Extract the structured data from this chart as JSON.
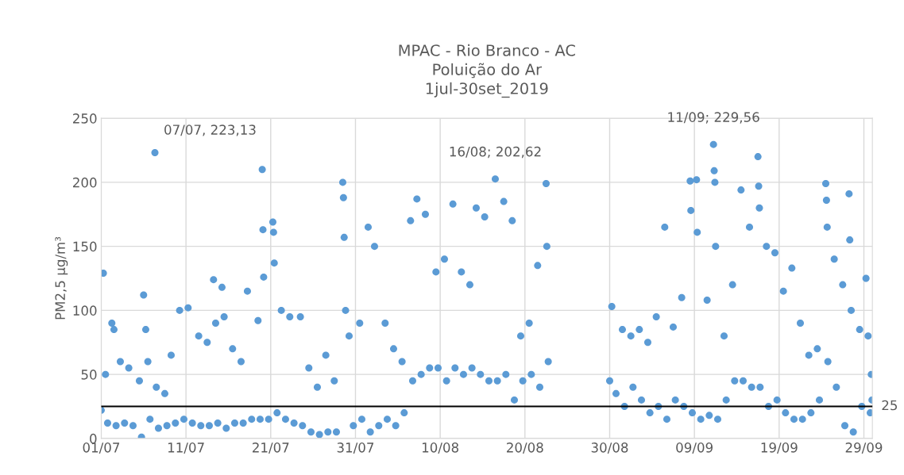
{
  "chart_data": {
    "type": "scatter",
    "title": "MPAC - Rio Branco - AC\nPoluição do Ar\n1jul-30set_2019",
    "ylabel": "PM2,5 µg/m³",
    "xlim": [
      "2019-07-01",
      "2019-09-30"
    ],
    "xticks": [
      {
        "value": "2019-07-01",
        "label": "01/07"
      },
      {
        "value": "2019-07-11",
        "label": "11/07"
      },
      {
        "value": "2019-07-21",
        "label": "21/07"
      },
      {
        "value": "2019-07-31",
        "label": "31/07"
      },
      {
        "value": "2019-08-10",
        "label": "10/08"
      },
      {
        "value": "2019-08-20",
        "label": "20/08"
      },
      {
        "value": "2019-08-30",
        "label": "30/08"
      },
      {
        "value": "2019-09-09",
        "label": "09/09"
      },
      {
        "value": "2019-09-19",
        "label": "19/09"
      },
      {
        "value": "2019-09-29",
        "label": "29/09"
      }
    ],
    "ylim": [
      0,
      250
    ],
    "yticks": [
      0,
      50,
      100,
      150,
      200,
      250
    ],
    "grid": true,
    "marker": "circle",
    "ref_lines": [
      {
        "axis": "y",
        "value": 25,
        "label": "25",
        "color": "#000000"
      }
    ],
    "annotations": [
      {
        "text": "07/07, 223,13",
        "x": "2019-07-07T08:00",
        "y": 223.13
      },
      {
        "text": "16/08; 202,62",
        "x": "2019-08-16T12:00",
        "y": 202.62
      },
      {
        "text": "11/09; 229,56",
        "x": "2019-09-11T06:00",
        "y": 229.56
      }
    ],
    "series": [
      {
        "color": "#5b9bd5",
        "x": [
          "2019-07-01T00:00",
          "2019-07-01T06:00",
          "2019-07-01T12:00",
          "2019-07-01T18:00",
          "2019-07-02T06:00",
          "2019-07-02T12:00",
          "2019-07-02T18:00",
          "2019-07-03T06:00",
          "2019-07-03T18:00",
          "2019-07-04T06:00",
          "2019-07-04T18:00",
          "2019-07-05T12:00",
          "2019-07-05T18:00",
          "2019-07-06T00:00",
          "2019-07-06T06:00",
          "2019-07-06T12:00",
          "2019-07-06T18:00",
          "2019-07-07T08:00",
          "2019-07-07T12:00",
          "2019-07-07T18:00",
          "2019-07-08T12:00",
          "2019-07-08T18:00",
          "2019-07-09T06:00",
          "2019-07-09T18:00",
          "2019-07-10T06:00",
          "2019-07-10T18:00",
          "2019-07-11T06:00",
          "2019-07-11T18:00",
          "2019-07-12T12:00",
          "2019-07-12T18:00",
          "2019-07-13T12:00",
          "2019-07-13T18:00",
          "2019-07-14T06:00",
          "2019-07-14T12:00",
          "2019-07-14T18:00",
          "2019-07-15T06:00",
          "2019-07-15T12:00",
          "2019-07-15T18:00",
          "2019-07-16T12:00",
          "2019-07-16T18:00",
          "2019-07-17T12:00",
          "2019-07-17T18:00",
          "2019-07-18T06:00",
          "2019-07-18T18:00",
          "2019-07-19T12:00",
          "2019-07-19T18:00",
          "2019-07-20T00:00",
          "2019-07-20T02:00",
          "2019-07-20T04:00",
          "2019-07-20T18:00",
          "2019-07-21T06:00",
          "2019-07-21T08:00",
          "2019-07-21T10:00",
          "2019-07-21T18:00",
          "2019-07-22T06:00",
          "2019-07-22T18:00",
          "2019-07-23T06:00",
          "2019-07-23T18:00",
          "2019-07-24T12:00",
          "2019-07-24T18:00",
          "2019-07-25T12:00",
          "2019-07-25T18:00",
          "2019-07-26T12:00",
          "2019-07-26T18:00",
          "2019-07-27T12:00",
          "2019-07-27T18:00",
          "2019-07-28T12:00",
          "2019-07-28T18:00",
          "2019-07-29T12:00",
          "2019-07-29T14:00",
          "2019-07-29T16:00",
          "2019-07-29T20:00",
          "2019-07-30T06:00",
          "2019-07-30T18:00",
          "2019-07-31T12:00",
          "2019-07-31T18:00",
          "2019-08-01T12:00",
          "2019-08-01T18:00",
          "2019-08-02T06:00",
          "2019-08-02T18:00",
          "2019-08-03T12:00",
          "2019-08-03T18:00",
          "2019-08-04T12:00",
          "2019-08-04T18:00",
          "2019-08-05T12:00",
          "2019-08-05T18:00",
          "2019-08-06T12:00",
          "2019-08-06T18:00",
          "2019-08-07T06:00",
          "2019-08-07T18:00",
          "2019-08-08T06:00",
          "2019-08-08T18:00",
          "2019-08-09T12:00",
          "2019-08-09T18:00",
          "2019-08-10T12:00",
          "2019-08-10T18:00",
          "2019-08-11T12:00",
          "2019-08-11T18:00",
          "2019-08-12T12:00",
          "2019-08-12T18:00",
          "2019-08-13T12:00",
          "2019-08-13T18:00",
          "2019-08-14T06:00",
          "2019-08-14T18:00",
          "2019-08-15T06:00",
          "2019-08-15T18:00",
          "2019-08-16T12:00",
          "2019-08-16T18:00",
          "2019-08-17T12:00",
          "2019-08-17T18:00",
          "2019-08-18T12:00",
          "2019-08-18T18:00",
          "2019-08-19T12:00",
          "2019-08-19T18:00",
          "2019-08-20T12:00",
          "2019-08-20T18:00",
          "2019-08-21T12:00",
          "2019-08-21T18:00",
          "2019-08-22T12:00",
          "2019-08-22T14:00",
          "2019-08-22T18:00",
          "2019-08-30T00:00",
          "2019-08-30T06:00",
          "2019-08-30T18:00",
          "2019-08-31T12:00",
          "2019-08-31T18:00",
          "2019-09-01T12:00",
          "2019-09-01T18:00",
          "2019-09-02T12:00",
          "2019-09-02T18:00",
          "2019-09-03T12:00",
          "2019-09-03T18:00",
          "2019-09-04T12:00",
          "2019-09-04T18:00",
          "2019-09-05T12:00",
          "2019-09-05T18:00",
          "2019-09-06T12:00",
          "2019-09-06T18:00",
          "2019-09-07T12:00",
          "2019-09-07T18:00",
          "2019-09-08T12:00",
          "2019-09-08T14:00",
          "2019-09-08T18:00",
          "2019-09-09T06:00",
          "2019-09-09T08:00",
          "2019-09-09T18:00",
          "2019-09-10T12:00",
          "2019-09-10T18:00",
          "2019-09-11T06:00",
          "2019-09-11T08:00",
          "2019-09-11T10:00",
          "2019-09-11T12:00",
          "2019-09-11T18:00",
          "2019-09-12T12:00",
          "2019-09-12T18:00",
          "2019-09-13T12:00",
          "2019-09-13T18:00",
          "2019-09-14T12:00",
          "2019-09-14T18:00",
          "2019-09-15T12:00",
          "2019-09-15T18:00",
          "2019-09-16T12:00",
          "2019-09-16T14:00",
          "2019-09-16T16:00",
          "2019-09-16T18:00",
          "2019-09-17T12:00",
          "2019-09-17T18:00",
          "2019-09-18T12:00",
          "2019-09-18T18:00",
          "2019-09-19T12:00",
          "2019-09-19T18:00",
          "2019-09-20T12:00",
          "2019-09-20T18:00",
          "2019-09-21T12:00",
          "2019-09-21T18:00",
          "2019-09-22T12:00",
          "2019-09-22T18:00",
          "2019-09-23T12:00",
          "2019-09-23T18:00",
          "2019-09-24T12:00",
          "2019-09-24T14:00",
          "2019-09-24T16:00",
          "2019-09-24T18:00",
          "2019-09-25T12:00",
          "2019-09-25T18:00",
          "2019-09-26T12:00",
          "2019-09-26T18:00",
          "2019-09-27T06:00",
          "2019-09-27T08:00",
          "2019-09-27T12:00",
          "2019-09-27T18:00",
          "2019-09-28T12:00",
          "2019-09-28T18:00",
          "2019-09-29T06:00",
          "2019-09-29T12:00",
          "2019-09-29T18:00",
          "2019-09-29T21:00",
          "2019-09-29T23:00"
        ],
        "values": [
          22,
          129,
          50,
          12,
          90,
          85,
          10,
          60,
          12,
          55,
          10,
          45,
          1,
          112,
          85,
          60,
          15,
          223.13,
          40,
          8,
          35,
          10,
          65,
          12,
          100,
          15,
          102,
          12,
          80,
          10,
          75,
          10,
          124,
          90,
          12,
          118,
          95,
          8,
          70,
          12,
          60,
          12,
          115,
          15,
          92,
          15,
          210,
          163,
          126,
          15,
          169,
          161,
          137,
          20,
          100,
          15,
          95,
          12,
          95,
          10,
          55,
          5,
          40,
          3,
          65,
          5,
          45,
          5,
          200,
          188,
          157,
          100,
          80,
          10,
          90,
          15,
          165,
          5,
          150,
          10,
          90,
          15,
          70,
          10,
          60,
          20,
          170,
          45,
          187,
          50,
          175,
          55,
          130,
          55,
          140,
          45,
          183,
          55,
          130,
          50,
          120,
          55,
          180,
          50,
          173,
          45,
          202.62,
          45,
          185,
          50,
          170,
          30,
          80,
          45,
          90,
          50,
          135,
          40,
          199,
          150,
          60,
          45,
          103,
          35,
          85,
          25,
          80,
          40,
          85,
          30,
          75,
          20,
          95,
          25,
          165,
          15,
          87,
          30,
          110,
          25,
          201,
          178,
          20,
          202,
          161,
          15,
          108,
          18,
          229.56,
          209,
          200,
          150,
          15,
          80,
          30,
          120,
          45,
          194,
          45,
          165,
          40,
          220,
          197,
          180,
          40,
          150,
          25,
          145,
          30,
          115,
          20,
          133,
          15,
          90,
          15,
          65,
          20,
          70,
          30,
          199,
          186,
          165,
          60,
          140,
          40,
          120,
          10,
          191,
          155,
          100,
          5,
          85,
          25,
          125,
          80,
          20,
          50,
          30
        ]
      }
    ]
  }
}
